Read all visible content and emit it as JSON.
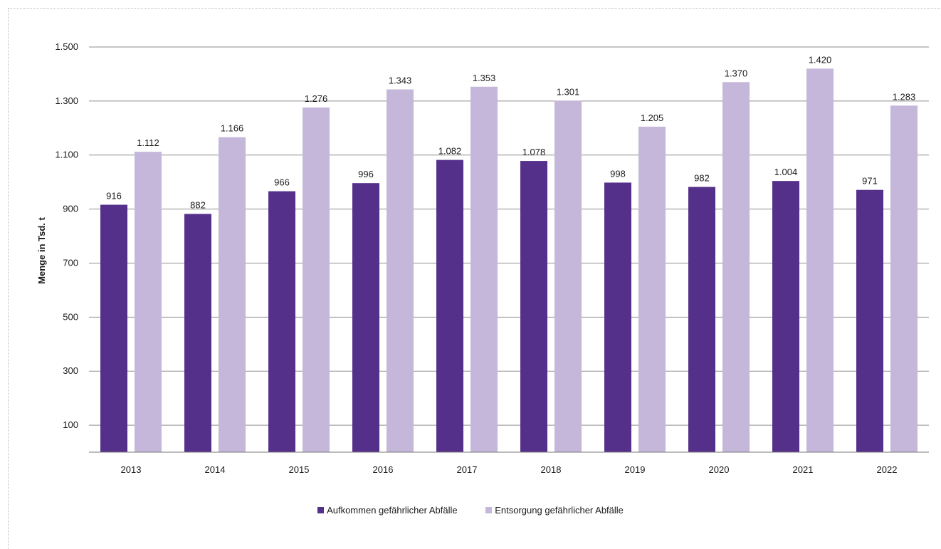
{
  "chart_data": {
    "type": "bar",
    "ylabel": "Menge in Tsd. t",
    "xlabel": "",
    "ylim": [
      0,
      1500
    ],
    "yticks": [
      100,
      300,
      500,
      700,
      900,
      1100,
      1300,
      1500
    ],
    "ytick_labels": [
      "100",
      "300",
      "500",
      "700",
      "900",
      "1.100",
      "1.300",
      "1.500"
    ],
    "categories": [
      "2013",
      "2014",
      "2015",
      "2016",
      "2017",
      "2018",
      "2019",
      "2020",
      "2021",
      "2022"
    ],
    "series": [
      {
        "name": "Aufkommen gefährlicher Abfälle",
        "color": "#55308a",
        "values": [
          916,
          882,
          966,
          996,
          1082,
          1078,
          998,
          982,
          1004,
          971
        ],
        "labels": [
          "916",
          "882",
          "966",
          "996",
          "1.082",
          "1.078",
          "998",
          "982",
          "1.004",
          "971"
        ]
      },
      {
        "name": "Entsorgung gefährlicher Abfälle",
        "color": "#c4b7da",
        "values": [
          1112,
          1166,
          1276,
          1343,
          1353,
          1301,
          1205,
          1370,
          1420,
          1283
        ],
        "labels": [
          "1.112",
          "1.166",
          "1.276",
          "1.343",
          "1.353",
          "1.301",
          "1.205",
          "1.370",
          "1.420",
          "1.283"
        ]
      }
    ],
    "grid": true,
    "legend": "bottom"
  }
}
